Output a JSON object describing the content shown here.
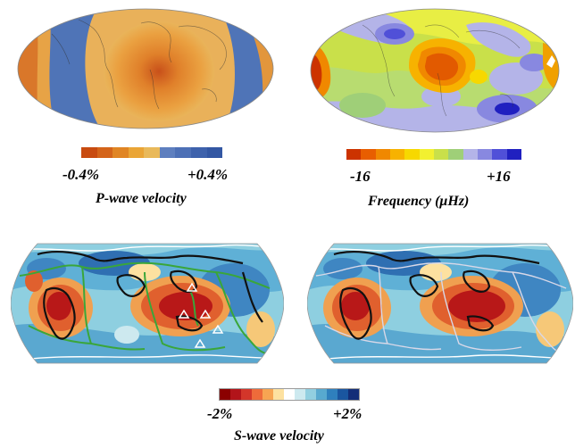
{
  "panels": {
    "p_wave": {
      "scale_min": "-0.4%",
      "scale_max": "+0.4%",
      "title": "P-wave velocity",
      "colors": [
        "#c84b10",
        "#d4641a",
        "#e08524",
        "#eaa536",
        "#e9b95a",
        "#5e7fbf",
        "#4d70b6",
        "#3e62ac",
        "#3357a3"
      ]
    },
    "frequency": {
      "scale_min": "-16",
      "scale_max": "+16",
      "title": "Frequency (μHz)",
      "colors": [
        "#cc3300",
        "#e85e00",
        "#f08800",
        "#f7b200",
        "#f7d800",
        "#f2f030",
        "#c9e04a",
        "#9fcf78",
        "#b4b4e8",
        "#8888e0",
        "#5050d8",
        "#2020c0"
      ]
    },
    "s_wave": {
      "scale_min": "-2%",
      "scale_max": "+2%",
      "title": "S-wave velocity",
      "colors": [
        "#8b0000",
        "#b2141a",
        "#d3362a",
        "#ee6b3a",
        "#f7a552",
        "#fde1a0",
        "#ffffff",
        "#cde9ef",
        "#92cfe0",
        "#58a9cf",
        "#2f80bd",
        "#1a56a0",
        "#132e78"
      ]
    }
  }
}
